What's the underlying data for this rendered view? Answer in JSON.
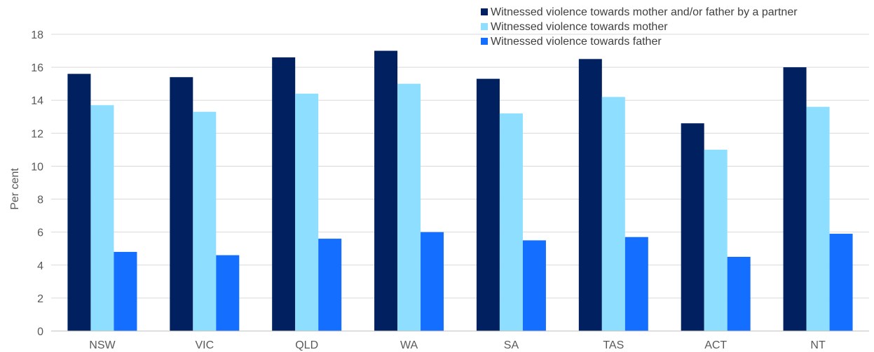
{
  "chart_data": {
    "type": "bar",
    "title": "",
    "xlabel": "",
    "ylabel": "Per cent",
    "ylim": [
      0,
      18
    ],
    "yticks": [
      0,
      2,
      4,
      6,
      8,
      10,
      12,
      14,
      16,
      18
    ],
    "grid": true,
    "legend_position": "top-right",
    "categories": [
      "NSW",
      "VIC",
      "QLD",
      "WA",
      "SA",
      "TAS",
      "ACT",
      "NT"
    ],
    "series": [
      {
        "name": "Witnessed violence towards mother and/or father by a partner",
        "color": "#002060",
        "values": [
          15.6,
          15.4,
          16.6,
          17.0,
          15.3,
          16.5,
          12.6,
          16.0
        ]
      },
      {
        "name": "Witnessed violence towards mother",
        "color": "#8EDFFF",
        "values": [
          13.7,
          13.3,
          14.4,
          15.0,
          13.2,
          14.2,
          11.0,
          13.6
        ]
      },
      {
        "name": "Witnessed violence towards father",
        "color": "#146EFF",
        "values": [
          4.8,
          4.6,
          5.6,
          6.0,
          5.5,
          5.7,
          4.5,
          5.9
        ]
      }
    ]
  }
}
